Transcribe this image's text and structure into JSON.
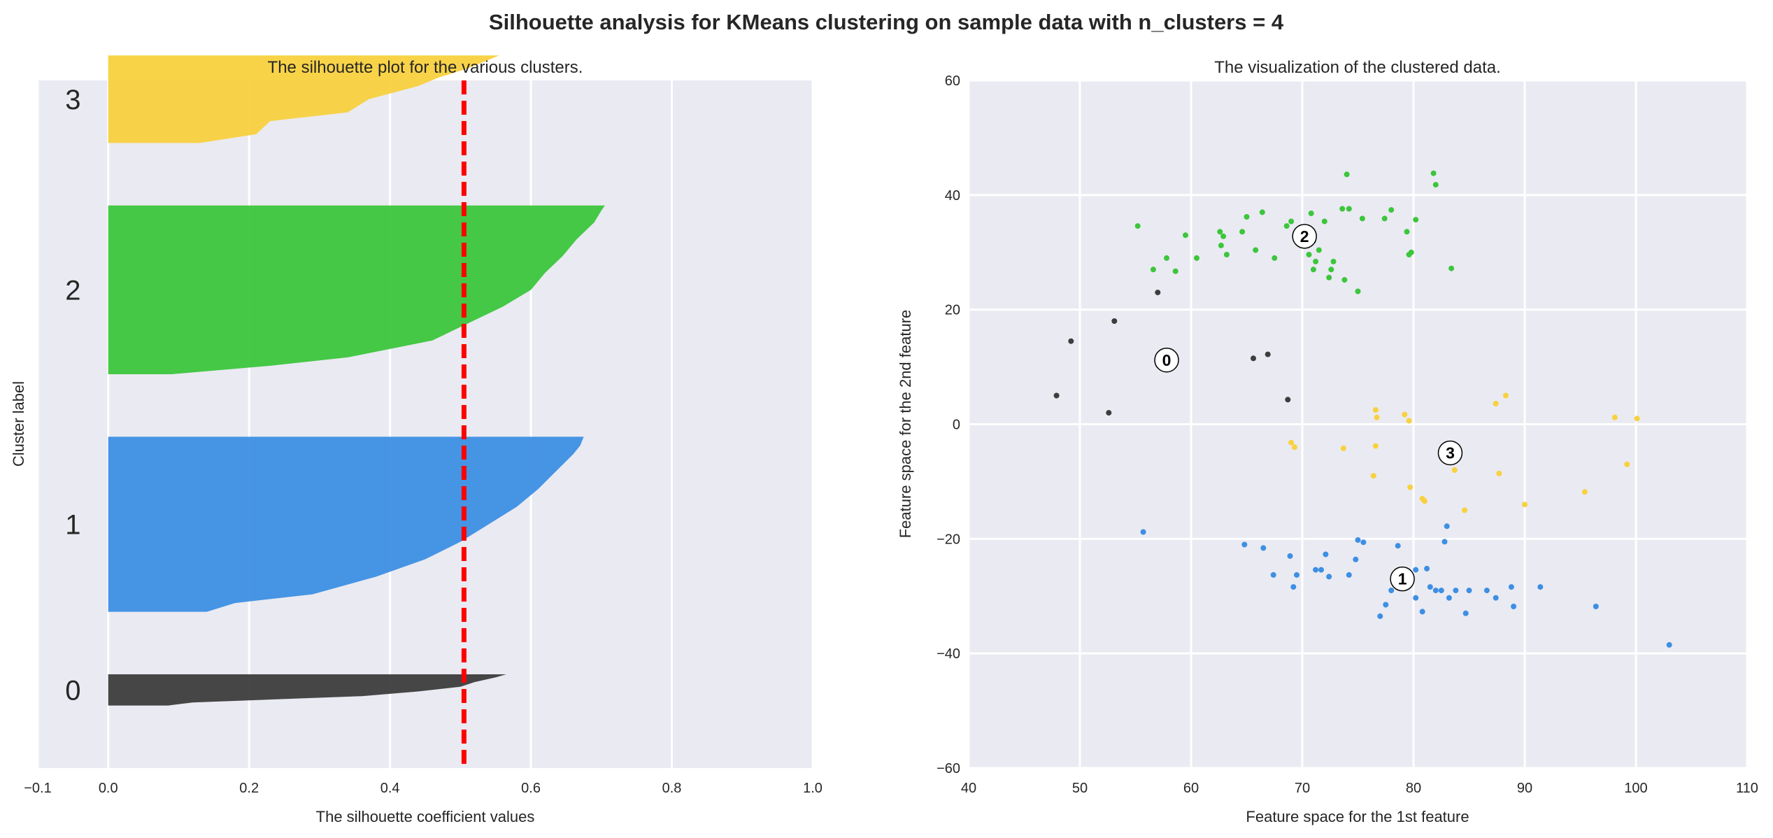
{
  "figure": {
    "suptitle": "Silhouette analysis for KMeans clustering on sample data with n_clusters = 4"
  },
  "colors": {
    "background": "#ffffff",
    "axes_face": "#eaeaf2",
    "grid": "#ffffff",
    "text": "#262626",
    "avg_line": "#ff0000",
    "cluster_0": "#3d3d3d",
    "cluster_1": "#3d8fe3",
    "cluster_2": "#3cc63c",
    "cluster_3": "#f8d13e"
  },
  "chart_data": [
    {
      "type": "area",
      "title": "The silhouette plot for the various clusters.",
      "xlabel": "The silhouette coefficient values",
      "ylabel": "Cluster label",
      "xlim": [
        -0.1,
        1.0
      ],
      "ylim": [
        0,
        110
      ],
      "xticks": [
        -0.1,
        0.0,
        0.2,
        0.4,
        0.6,
        0.8,
        1.0
      ],
      "xtick_labels": [
        "−0.1",
        "0.0",
        "0.2",
        "0.4",
        "0.6",
        "0.8",
        "1.0"
      ],
      "grid": true,
      "average_silhouette": 0.505,
      "clusters": [
        {
          "label": "0",
          "y_range": [
            10,
            15
          ],
          "profile": [
            [
              0.0,
              0.085
            ],
            [
              0.1,
              0.12
            ],
            [
              0.3,
              0.36
            ],
            [
              0.45,
              0.44
            ],
            [
              0.6,
              0.5
            ],
            [
              0.75,
              0.52
            ],
            [
              0.9,
              0.55
            ],
            [
              1.0,
              0.565
            ]
          ]
        },
        {
          "label": "1",
          "y_range": [
            25,
            53
          ],
          "profile": [
            [
              0.0,
              0.14
            ],
            [
              0.05,
              0.18
            ],
            [
              0.1,
              0.29
            ],
            [
              0.2,
              0.38
            ],
            [
              0.3,
              0.45
            ],
            [
              0.4,
              0.5
            ],
            [
              0.5,
              0.54
            ],
            [
              0.6,
              0.58
            ],
            [
              0.7,
              0.61
            ],
            [
              0.8,
              0.635
            ],
            [
              0.9,
              0.66
            ],
            [
              0.95,
              0.67
            ],
            [
              1.0,
              0.675
            ]
          ]
        },
        {
          "label": "2",
          "y_range": [
            63,
            90
          ],
          "profile": [
            [
              0.0,
              0.09
            ],
            [
              0.05,
              0.23
            ],
            [
              0.1,
              0.34
            ],
            [
              0.2,
              0.46
            ],
            [
              0.3,
              0.51
            ],
            [
              0.4,
              0.56
            ],
            [
              0.5,
              0.6
            ],
            [
              0.6,
              0.62
            ],
            [
              0.7,
              0.645
            ],
            [
              0.8,
              0.665
            ],
            [
              0.9,
              0.69
            ],
            [
              0.97,
              0.7
            ],
            [
              1.0,
              0.705
            ]
          ]
        },
        {
          "label": "3",
          "y_range": [
            100,
            114
          ],
          "profile": [
            [
              0.0,
              0.13
            ],
            [
              0.1,
              0.21
            ],
            [
              0.25,
              0.23
            ],
            [
              0.35,
              0.34
            ],
            [
              0.5,
              0.37
            ],
            [
              0.65,
              0.44
            ],
            [
              0.75,
              0.47
            ],
            [
              0.85,
              0.51
            ],
            [
              0.95,
              0.54
            ],
            [
              1.0,
              0.555
            ]
          ]
        }
      ]
    },
    {
      "type": "scatter",
      "title": "The visualization of the clustered data.",
      "xlabel": "Feature space for the 1st feature",
      "ylabel": "Feature space for the 2nd feature",
      "xlim": [
        40,
        110
      ],
      "ylim": [
        -60,
        60
      ],
      "xticks": [
        40,
        50,
        60,
        70,
        80,
        90,
        100,
        110
      ],
      "xtick_labels": [
        "40",
        "50",
        "60",
        "70",
        "80",
        "90",
        "100",
        "110"
      ],
      "yticks": [
        -60,
        -40,
        -20,
        0,
        20,
        40,
        60
      ],
      "ytick_labels": [
        "−60",
        "−40",
        "−20",
        "0",
        "20",
        "40",
        "60"
      ],
      "grid": true,
      "centers": [
        {
          "label": "0",
          "x": 57.8,
          "y": 11.2
        },
        {
          "label": "1",
          "x": 79.0,
          "y": -27.0
        },
        {
          "label": "2",
          "x": 70.2,
          "y": 32.8
        },
        {
          "label": "3",
          "x": 83.3,
          "y": -5.0
        }
      ],
      "series": [
        {
          "cluster": 0,
          "points": [
            [
              47.9,
              5.0
            ],
            [
              49.2,
              14.5
            ],
            [
              52.6,
              2.0
            ],
            [
              53.1,
              18.0
            ],
            [
              57.0,
              23.0
            ],
            [
              65.6,
              11.5
            ],
            [
              66.9,
              12.2
            ],
            [
              68.7,
              4.3
            ]
          ]
        },
        {
          "cluster": 1,
          "points": [
            [
              55.7,
              -18.8
            ],
            [
              64.8,
              -21.0
            ],
            [
              66.5,
              -21.6
            ],
            [
              67.4,
              -26.3
            ],
            [
              68.9,
              -23.0
            ],
            [
              69.2,
              -28.4
            ],
            [
              69.5,
              -26.3
            ],
            [
              71.2,
              -25.4
            ],
            [
              71.7,
              -25.4
            ],
            [
              72.1,
              -22.7
            ],
            [
              72.4,
              -26.6
            ],
            [
              74.2,
              -26.3
            ],
            [
              74.8,
              -23.6
            ],
            [
              75.0,
              -20.2
            ],
            [
              75.5,
              -20.6
            ],
            [
              77.0,
              -33.5
            ],
            [
              77.5,
              -31.5
            ],
            [
              78.0,
              -29.0
            ],
            [
              78.6,
              -21.2
            ],
            [
              79.3,
              -28.4
            ],
            [
              80.2,
              -25.4
            ],
            [
              80.2,
              -30.3
            ],
            [
              80.8,
              -32.7
            ],
            [
              81.2,
              -25.2
            ],
            [
              81.5,
              -28.4
            ],
            [
              82.0,
              -29.0
            ],
            [
              82.5,
              -29.0
            ],
            [
              82.8,
              -20.5
            ],
            [
              83.0,
              -17.8
            ],
            [
              83.2,
              -30.3
            ],
            [
              83.8,
              -29.0
            ],
            [
              84.7,
              -33.0
            ],
            [
              85.0,
              -29.0
            ],
            [
              86.6,
              -29.0
            ],
            [
              87.4,
              -30.3
            ],
            [
              88.8,
              -28.4
            ],
            [
              89.0,
              -31.8
            ],
            [
              91.4,
              -28.4
            ],
            [
              96.4,
              -31.8
            ],
            [
              103.0,
              -38.5
            ]
          ]
        },
        {
          "cluster": 2,
          "points": [
            [
              55.2,
              34.6
            ],
            [
              56.6,
              27.0
            ],
            [
              57.8,
              29.0
            ],
            [
              58.6,
              26.7
            ],
            [
              59.5,
              33.0
            ],
            [
              60.5,
              29.0
            ],
            [
              62.6,
              33.6
            ],
            [
              62.7,
              31.2
            ],
            [
              62.9,
              32.8
            ],
            [
              63.2,
              29.6
            ],
            [
              64.6,
              33.6
            ],
            [
              65.0,
              36.2
            ],
            [
              65.8,
              30.4
            ],
            [
              66.4,
              37.0
            ],
            [
              67.5,
              29.0
            ],
            [
              68.6,
              34.6
            ],
            [
              69.0,
              35.4
            ],
            [
              70.6,
              29.6
            ],
            [
              70.8,
              36.8
            ],
            [
              71.0,
              32.0
            ],
            [
              71.0,
              27.0
            ],
            [
              71.2,
              28.4
            ],
            [
              71.5,
              30.4
            ],
            [
              72.0,
              35.4
            ],
            [
              72.4,
              25.6
            ],
            [
              72.6,
              27.0
            ],
            [
              72.8,
              28.4
            ],
            [
              73.6,
              37.6
            ],
            [
              73.8,
              25.2
            ],
            [
              74.0,
              43.6
            ],
            [
              74.2,
              37.6
            ],
            [
              75.0,
              23.2
            ],
            [
              75.4,
              35.9
            ],
            [
              77.4,
              35.9
            ],
            [
              78.0,
              37.4
            ],
            [
              79.4,
              33.6
            ],
            [
              79.6,
              29.6
            ],
            [
              79.8,
              30.0
            ],
            [
              80.2,
              35.7
            ],
            [
              81.8,
              43.8
            ],
            [
              82.0,
              41.8
            ],
            [
              83.4,
              27.2
            ]
          ]
        },
        {
          "cluster": 3,
          "points": [
            [
              69.0,
              -3.2
            ],
            [
              69.3,
              -4.0
            ],
            [
              73.7,
              -4.2
            ],
            [
              76.4,
              -9.0
            ],
            [
              76.6,
              2.5
            ],
            [
              76.6,
              -3.8
            ],
            [
              76.7,
              1.2
            ],
            [
              79.2,
              1.7
            ],
            [
              79.6,
              0.6
            ],
            [
              79.7,
              -11.0
            ],
            [
              80.8,
              -13.0
            ],
            [
              81.0,
              -13.4
            ],
            [
              83.7,
              -8.0
            ],
            [
              84.6,
              -15.0
            ],
            [
              87.4,
              3.6
            ],
            [
              87.7,
              -8.6
            ],
            [
              88.3,
              5.0
            ],
            [
              90.0,
              -14.0
            ],
            [
              95.4,
              -11.8
            ],
            [
              98.1,
              1.2
            ],
            [
              99.2,
              -7.0
            ],
            [
              100.1,
              1.0
            ]
          ]
        }
      ]
    }
  ]
}
